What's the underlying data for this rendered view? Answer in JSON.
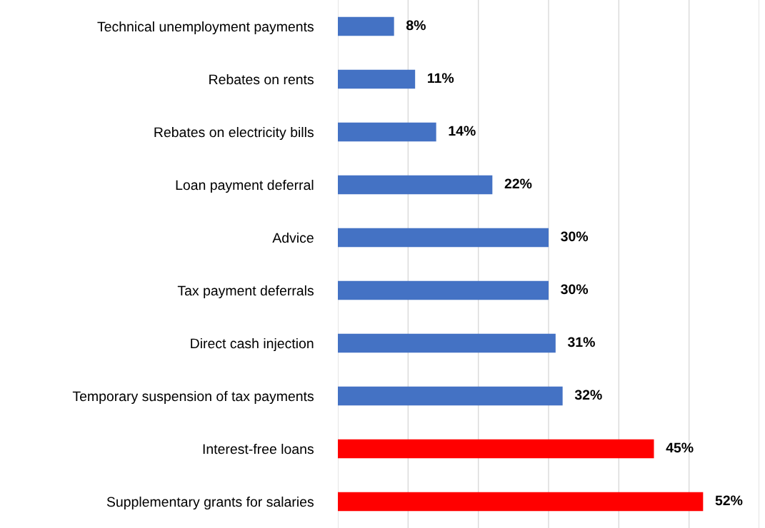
{
  "chart_data": {
    "type": "bar",
    "orientation": "horizontal",
    "categories": [
      "Technical unemployment payments",
      "Rebates on rents",
      "Rebates on electricity bills",
      "Loan payment deferral",
      "Advice",
      "Tax payment deferrals",
      "Direct cash injection",
      "Temporary suspension of tax payments",
      "Interest-free loans",
      "Supplementary grants for salaries"
    ],
    "values": [
      8,
      11,
      14,
      22,
      30,
      30,
      31,
      32,
      45,
      52
    ],
    "value_labels": [
      "8%",
      "11%",
      "14%",
      "22%",
      "30%",
      "30%",
      "31%",
      "32%",
      "45%",
      "52%"
    ],
    "colors": [
      "#4472c4",
      "#4472c4",
      "#4472c4",
      "#4472c4",
      "#4472c4",
      "#4472c4",
      "#4472c4",
      "#4472c4",
      "#ff0000",
      "#ff0000"
    ],
    "xlim": [
      0,
      60
    ],
    "xticks": [
      {
        "value": 0,
        "label": null
      },
      {
        "value": 10,
        "label": null
      },
      {
        "value": 20,
        "label": null
      },
      {
        "value": 30,
        "label": null
      },
      {
        "value": 40,
        "label": null
      },
      {
        "value": 50,
        "label": null
      },
      {
        "value": 60,
        "label": null
      }
    ],
    "tick_labels": "y",
    "grid": "x",
    "legend": false
  }
}
